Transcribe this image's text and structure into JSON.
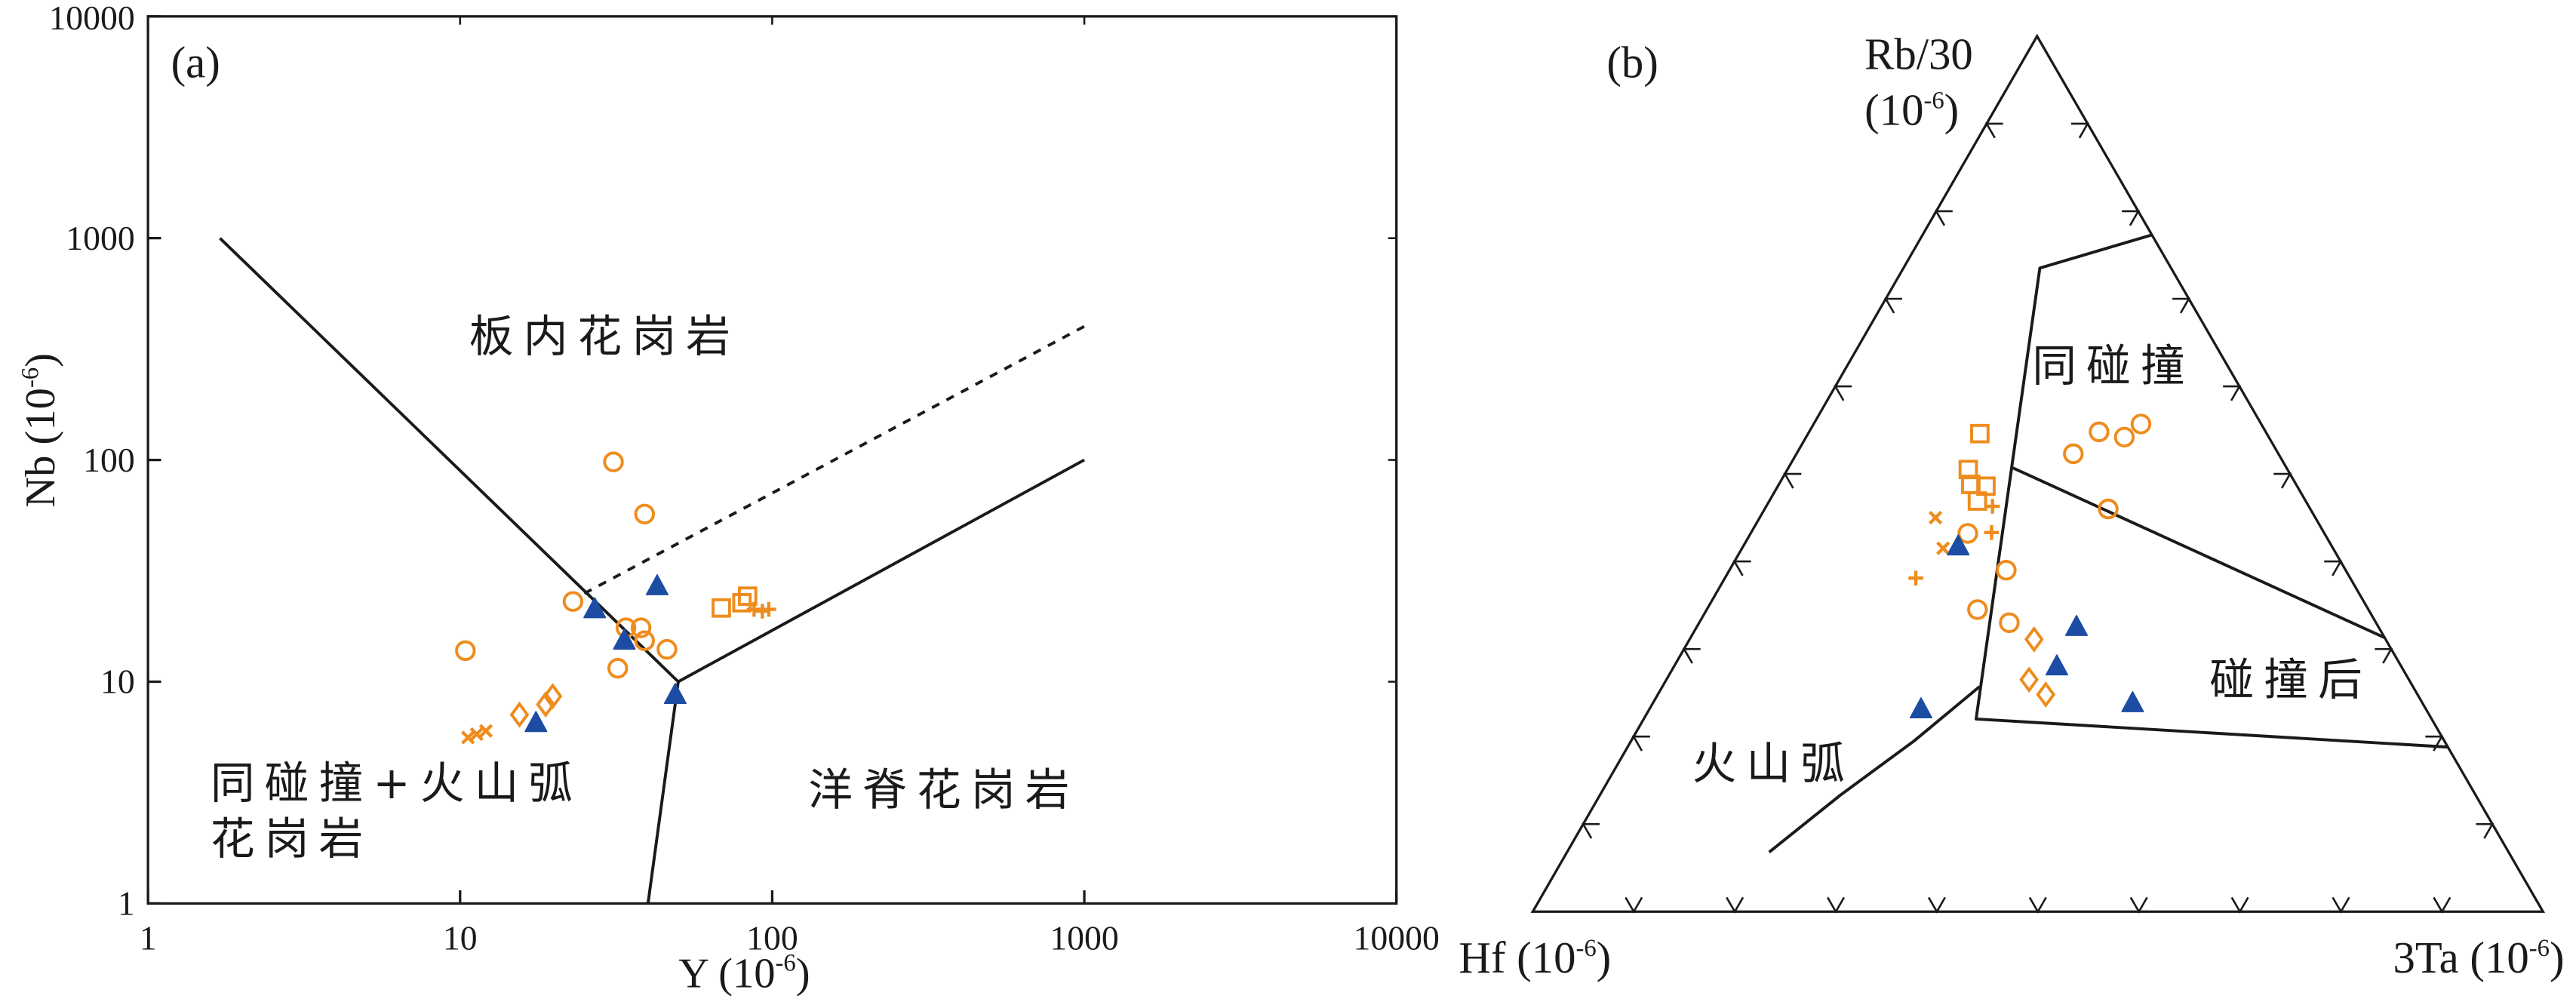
{
  "chart_data": [
    {
      "type": "scatter",
      "panel_label": "(a)",
      "xlabel": {
        "text": "Y (10",
        "sup": "-6",
        "end": ")"
      },
      "ylabel": {
        "text": "Nb (10",
        "sup": "-6",
        "end": ")"
      },
      "xscale": "log",
      "yscale": "log",
      "xlim": [
        1,
        10000
      ],
      "ylim": [
        1,
        10000
      ],
      "xticks": [
        "1",
        "10",
        "100",
        "1000",
        "10000"
      ],
      "yticks": [
        "1",
        "10",
        "100",
        "1000",
        "10000"
      ],
      "grid": false,
      "fields": [
        {
          "lines": [
            "板内花岗岩"
          ]
        },
        {
          "lines": [
            "同碰撞+火山弧",
            "花岗岩"
          ]
        },
        {
          "lines": [
            "洋脊花岗岩"
          ]
        }
      ],
      "boundaries": [
        {
          "style": "solid",
          "points": [
            [
              1.7,
              1000
            ],
            [
              50,
              10
            ]
          ]
        },
        {
          "style": "solid",
          "points": [
            [
              50,
              10
            ],
            [
              1000,
              100
            ]
          ]
        },
        {
          "style": "solid",
          "points": [
            [
              50,
              10
            ],
            [
              40,
              1
            ]
          ]
        },
        {
          "style": "dashed",
          "points": [
            [
              25,
              25
            ],
            [
              1000,
              400
            ]
          ]
        }
      ],
      "series": [
        {
          "marker": "circle",
          "color": "#ee8c1d",
          "points": [
            [
              10.4,
              13.8
            ],
            [
              31,
              98
            ],
            [
              39,
              57
            ],
            [
              23,
              23
            ],
            [
              34,
              17.5
            ],
            [
              38,
              17.5
            ],
            [
              39,
              15.3
            ],
            [
              46,
              14
            ],
            [
              32,
              11.5
            ]
          ]
        },
        {
          "marker": "diamond",
          "color": "#ee8c1d",
          "points": [
            [
              15.5,
              7.1
            ],
            [
              18.8,
              7.9
            ],
            [
              19.8,
              8.6
            ]
          ]
        },
        {
          "marker": "x",
          "color": "#ee8c1d",
          "points": [
            [
              10.6,
              5.6
            ],
            [
              11.3,
              5.8
            ],
            [
              12.1,
              6.0
            ]
          ]
        },
        {
          "marker": "square",
          "color": "#ee8c1d",
          "points": [
            [
              68.7,
              21.5
            ],
            [
              80,
              22.7
            ],
            [
              83.4,
              24.3
            ]
          ]
        },
        {
          "marker": "plus",
          "color": "#ee8c1d",
          "points": [
            [
              87.5,
              21.2
            ],
            [
              93,
              20.8
            ],
            [
              97.5,
              21.2
            ]
          ]
        },
        {
          "marker": "triangle",
          "color": "#1c4da3",
          "points": [
            [
              27,
              21.2
            ],
            [
              42.8,
              26.9
            ],
            [
              33.6,
              15.3
            ],
            [
              17.5,
              6.5
            ],
            [
              48.9,
              8.7
            ]
          ]
        }
      ]
    },
    {
      "type": "ternary",
      "panel_label": "(b)",
      "apex": {
        "top": {
          "text": "Rb/30",
          "unit": "(10",
          "sup": "-6",
          "end": ")"
        },
        "left": {
          "text": "Hf (10",
          "sup": "-6",
          "end": ")"
        },
        "right": {
          "text": "3Ta (10",
          "sup": "-6",
          "end": ")"
        }
      },
      "fields": [
        "同碰撞",
        "碰撞后",
        "火山弧"
      ],
      "boundaries": [
        {
          "style": "solid",
          "points": [
            {
              "Rb/30": 77.3,
              "Hf": 0,
              "3Ta": 22.7
            },
            {
              "Rb/30": 73.5,
              "Hf": 13.0,
              "3Ta": 13.5
            },
            {
              "Rb/30": 22.0,
              "Hf": 45.1,
              "3Ta": 32.9
            },
            {
              "Rb/30": 18.8,
              "Hf": 0,
              "3Ta": 81.2
            }
          ]
        },
        {
          "style": "solid",
          "points": [
            {
              "Rb/30": 50.7,
              "Hf": 27.1,
              "3Ta": 22.2
            },
            {
              "Rb/30": 31.3,
              "Hf": 0,
              "3Ta": 68.7
            }
          ]
        },
        {
          "style": "solid",
          "points": [
            {
              "Rb/30": 6.8,
              "Hf": 73.2,
              "3Ta": 20.0
            },
            {
              "Rb/30": 13.3,
              "Hf": 62.9,
              "3Ta": 23.8
            },
            {
              "Rb/30": 19.5,
              "Hf": 52.5,
              "3Ta": 28.0
            },
            {
              "Rb/30": 25.7,
              "Hf": 42.9,
              "3Ta": 31.4
            }
          ]
        }
      ],
      "series": [
        {
          "marker": "square",
          "color": "#ee8c1d",
          "points": [
            {
              "Rb/30": 54.6,
              "Hf": 28.4,
              "3Ta": 17.0
            },
            {
              "Rb/30": 50.5,
              "Hf": 31.6,
              "3Ta": 17.9
            },
            {
              "Rb/30": 48.8,
              "Hf": 32.2,
              "3Ta": 19.0
            },
            {
              "Rb/30": 48.6,
              "Hf": 30.8,
              "3Ta": 20.6
            },
            {
              "Rb/30": 46.9,
              "Hf": 32.5,
              "3Ta": 20.6
            }
          ]
        },
        {
          "marker": "x",
          "color": "#ee8c1d",
          "points": [
            {
              "Rb/30": 45.0,
              "Hf": 37.6,
              "3Ta": 17.4
            },
            {
              "Rb/30": 41.5,
              "Hf": 38.6,
              "3Ta": 19.9
            }
          ]
        },
        {
          "marker": "plus",
          "color": "#ee8c1d",
          "points": [
            {
              "Rb/30": 46.3,
              "Hf": 31.3,
              "3Ta": 22.4
            },
            {
              "Rb/30": 43.3,
              "Hf": 32.9,
              "3Ta": 23.8
            },
            {
              "Rb/30": 38.1,
              "Hf": 43.0,
              "3Ta": 18.9
            }
          ]
        },
        {
          "marker": "circle",
          "color": "#ee8c1d",
          "points": [
            {
              "Rb/30": 52.3,
              "Hf": 20.3,
              "3Ta": 27.4
            },
            {
              "Rb/30": 54.8,
              "Hf": 16.5,
              "3Ta": 28.7
            },
            {
              "Rb/30": 54.2,
              "Hf": 14.3,
              "3Ta": 31.5
            },
            {
              "Rb/30": 55.7,
              "Hf": 11.9,
              "3Ta": 32.4
            },
            {
              "Rb/30": 46.0,
              "Hf": 20.0,
              "3Ta": 34.0
            },
            {
              "Rb/30": 43.2,
              "Hf": 35.3,
              "3Ta": 21.5
            },
            {
              "Rb/30": 39.0,
              "Hf": 33.6,
              "3Ta": 27.4
            },
            {
              "Rb/30": 34.5,
              "Hf": 38.7,
              "3Ta": 26.8
            },
            {
              "Rb/30": 33.0,
              "Hf": 36.3,
              "3Ta": 30.7
            }
          ]
        },
        {
          "marker": "diamond",
          "color": "#ee8c1d",
          "points": [
            {
              "Rb/30": 31.1,
              "Hf": 34.8,
              "3Ta": 34.1
            },
            {
              "Rb/30": 26.5,
              "Hf": 37.6,
              "3Ta": 35.9
            },
            {
              "Rb/30": 24.8,
              "Hf": 36.8,
              "3Ta": 38.4
            }
          ]
        },
        {
          "marker": "triangle",
          "color": "#1c4da3",
          "points": [
            {
              "Rb/30": 41.7,
              "Hf": 37.0,
              "3Ta": 21.3
            },
            {
              "Rb/30": 32.5,
              "Hf": 29.9,
              "3Ta": 37.6
            },
            {
              "Rb/30": 28.0,
              "Hf": 34.1,
              "3Ta": 37.9
            },
            {
              "Rb/30": 23.1,
              "Hf": 50.0,
              "3Ta": 26.9
            },
            {
              "Rb/30": 23.8,
              "Hf": 28.7,
              "3Ta": 47.5
            }
          ]
        }
      ]
    }
  ]
}
